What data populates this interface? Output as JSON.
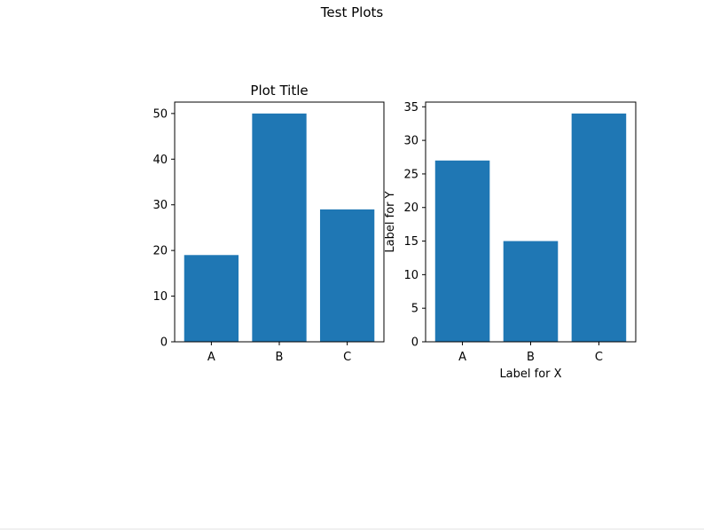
{
  "figure": {
    "suptitle": "Test Plots"
  },
  "chart_data": [
    {
      "type": "bar",
      "title": "Plot Title",
      "xlabel": "",
      "ylabel": "",
      "categories": [
        "A",
        "B",
        "C"
      ],
      "values": [
        19,
        50,
        29
      ],
      "ylim": [
        0,
        52.5
      ],
      "yticks": [
        0,
        10,
        20,
        30,
        40,
        50
      ],
      "bar_color": "#1f77b4",
      "grid": false
    },
    {
      "type": "bar",
      "title": "",
      "xlabel": "Label for X",
      "ylabel": "Label for Y",
      "categories": [
        "A",
        "B",
        "C"
      ],
      "values": [
        27,
        15,
        34
      ],
      "ylim": [
        0,
        35.7
      ],
      "yticks": [
        0,
        5,
        10,
        15,
        20,
        25,
        30,
        35
      ],
      "bar_color": "#1f77b4",
      "grid": false
    }
  ]
}
